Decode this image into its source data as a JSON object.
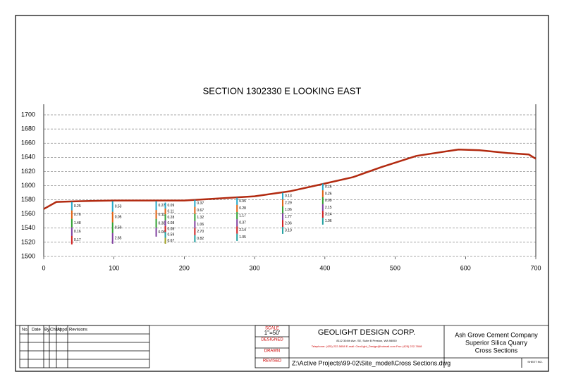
{
  "chart_data": {
    "type": "line",
    "title": "SECTION  1302330 E LOOKING EAST",
    "x": [
      0,
      18,
      50,
      100,
      150,
      200,
      250,
      300,
      350,
      400,
      440,
      480,
      530,
      590,
      620,
      660,
      690,
      700
    ],
    "values": [
      1567,
      1577,
      1578,
      1579,
      1579,
      1579,
      1582,
      1585,
      1592,
      1603,
      1612,
      1626,
      1642,
      1651,
      1650,
      1646,
      1644,
      1638
    ],
    "color": "#b22a10",
    "xlim": [
      0,
      700
    ],
    "ylim": [
      1500,
      1700
    ],
    "xticks": [
      0,
      100,
      200,
      300,
      400,
      500,
      600,
      700
    ],
    "yticks": [
      1500,
      1520,
      1540,
      1560,
      1580,
      1600,
      1620,
      1640,
      1660,
      1680,
      1700
    ],
    "grid": true,
    "holes": [
      {
        "x": 40,
        "top": 1577,
        "bottom": 1517,
        "labels": [
          "0.25",
          "0.76",
          "1.48",
          "0.16",
          "0.17"
        ]
      },
      {
        "x": 98,
        "top": 1578,
        "bottom": 1518,
        "labels": [
          "0.53",
          "0.05",
          "0.59",
          "2.85"
        ]
      },
      {
        "x": 160,
        "top": 1578,
        "bottom": 1528,
        "labels": [
          "0.27",
          "0.11",
          "0.38",
          "0.06"
        ]
      },
      {
        "x": 173,
        "top": 1576,
        "bottom": 1518,
        "labels": [
          "0.09",
          "0.11",
          "0.28",
          "0.08",
          "0.08",
          "0.59",
          "0.67"
        ]
      },
      {
        "x": 215,
        "top": 1580,
        "bottom": 1520,
        "labels": [
          "0.37",
          "0.67",
          "1.32",
          "1.06",
          "2.70",
          "0.82"
        ]
      },
      {
        "x": 275,
        "top": 1583,
        "bottom": 1522,
        "labels": [
          "0.05",
          "0.28",
          "1.17",
          "0.37",
          "2.14",
          "1.05"
        ]
      },
      {
        "x": 340,
        "top": 1590,
        "bottom": 1532,
        "labels": [
          "0.13",
          "2.29",
          "1.06",
          "1.77",
          "2.06",
          "3.10"
        ]
      },
      {
        "x": 397,
        "top": 1603,
        "bottom": 1545,
        "labels": [
          "0.16",
          "0.26",
          "0.09",
          "2.15",
          "3.14",
          "1.06"
        ]
      }
    ]
  },
  "title_block": {
    "revisions": {
      "headers": [
        "No.",
        "Date",
        "By",
        "Chk'd",
        "Appd.",
        "Revisions"
      ]
    },
    "scale": {
      "label": "SCALE",
      "value": "1\"=50'",
      "designed": "DESIGNED",
      "drawn": "DRAWN",
      "revised": "REVISED"
    },
    "company": {
      "name": "GEOLIGHT DESIGN CORP.",
      "address": "8112 304th Ave. SE, Suite B Preston, WA 98050",
      "contact": "Telephone: (425) 222-5658 E-mail: GeoLight_Design@hotmail.com Fax: (425) 222-7848"
    },
    "file_path": "Z:\\Active Projects\\99-02\\Site_model\\Cross Sections.dwg",
    "client": {
      "line1": "Ash Grove Cement Company",
      "line2": "Superior Silica Quarry",
      "line3": "Cross Sections"
    },
    "sheet": "SHEET NO."
  }
}
